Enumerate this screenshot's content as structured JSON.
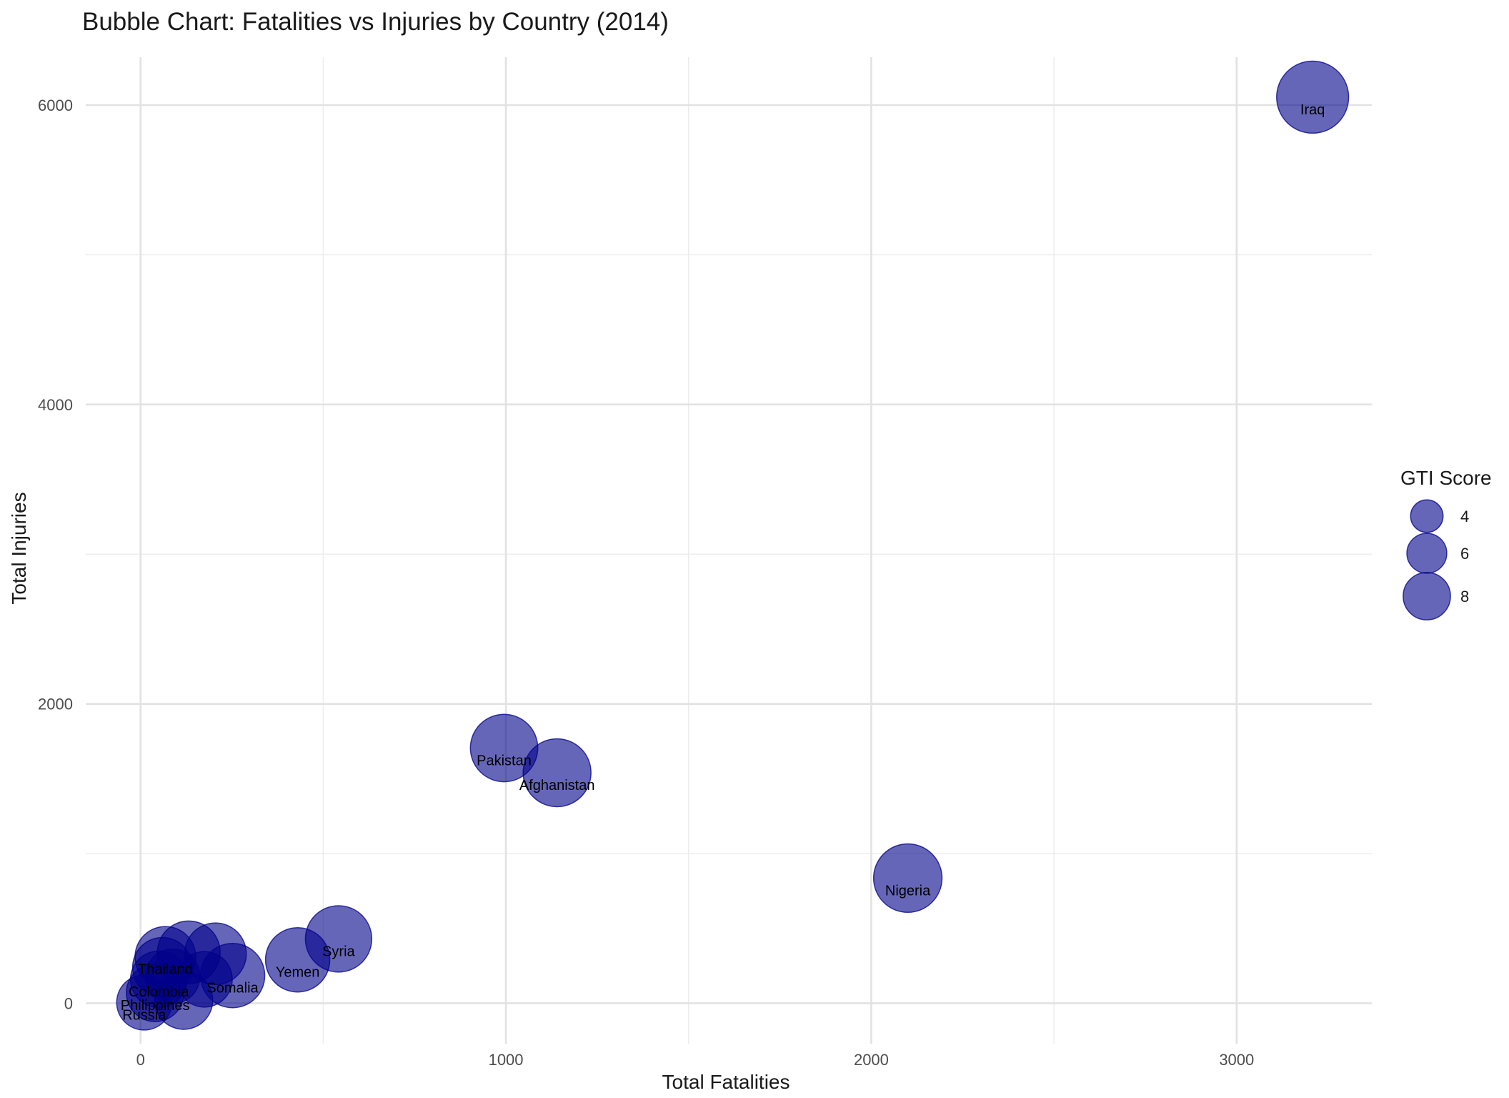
{
  "chart_data": {
    "type": "scatter",
    "title": "Bubble Chart: Fatalities vs Injuries by Country (2014)",
    "xlabel": "Total Fatalities",
    "ylabel": "Total Injuries",
    "xlim": [
      -150,
      3370
    ],
    "ylim": [
      -270,
      6320
    ],
    "x_ticks": [
      0,
      1000,
      2000,
      3000
    ],
    "y_ticks": [
      0,
      2000,
      4000,
      6000
    ],
    "grid": true,
    "bubble_color": "#00008B",
    "bubble_opacity": 0.6,
    "size_legend": {
      "title": "GTI Score",
      "placement": "right",
      "values": [
        4,
        6,
        8
      ],
      "labels": [
        "4",
        "6",
        "8"
      ]
    },
    "points": [
      {
        "label": "Iraq",
        "x": 3208,
        "y": 6053,
        "gti": 10.0,
        "label_dx": 0,
        "label_dy": -90
      },
      {
        "label": "Nigeria",
        "x": 2100,
        "y": 836,
        "gti": 9.3,
        "label_dx": 0,
        "label_dy": -90
      },
      {
        "label": "Afghanistan",
        "x": 1140,
        "y": 1540,
        "gti": 9.2,
        "label_dx": 0,
        "label_dy": -90
      },
      {
        "label": "Pakistan",
        "x": 995,
        "y": 1705,
        "gti": 9.1,
        "label_dx": 0,
        "label_dy": -90
      },
      {
        "label": "Syria",
        "x": 542,
        "y": 430,
        "gti": 8.9,
        "label_dx": 0,
        "label_dy": -90
      },
      {
        "label": "Yemen",
        "x": 430,
        "y": 290,
        "gti": 8.5,
        "label_dx": 0,
        "label_dy": -90
      },
      {
        "label": "Somalia",
        "x": 252,
        "y": 185,
        "gti": 8.5,
        "label_dx": 0,
        "label_dy": -90
      },
      {
        "label": "",
        "x": 205,
        "y": 330,
        "gti": 8.0
      },
      {
        "label": "",
        "x": 132,
        "y": 340,
        "gti": 8.2
      },
      {
        "label": "Thailand",
        "x": 68,
        "y": 310,
        "gti": 7.8,
        "label_dx": 0,
        "label_dy": -90
      },
      {
        "label": "",
        "x": 60,
        "y": 240,
        "gti": 7.6
      },
      {
        "label": "Colombia",
        "x": 50,
        "y": 160,
        "gti": 7.0,
        "label_dx": 0,
        "label_dy": -90
      },
      {
        "label": "",
        "x": 88,
        "y": 180,
        "gti": 6.6
      },
      {
        "label": "",
        "x": 175,
        "y": 160,
        "gti": 6.8
      },
      {
        "label": "Philippines",
        "x": 40,
        "y": 70,
        "gti": 7.2,
        "label_dx": 0,
        "label_dy": -90
      },
      {
        "label": "",
        "x": 118,
        "y": 20,
        "gti": 7.3
      },
      {
        "label": "Russia",
        "x": 10,
        "y": 5,
        "gti": 6.7,
        "label_dx": 0,
        "label_dy": -90
      }
    ]
  }
}
